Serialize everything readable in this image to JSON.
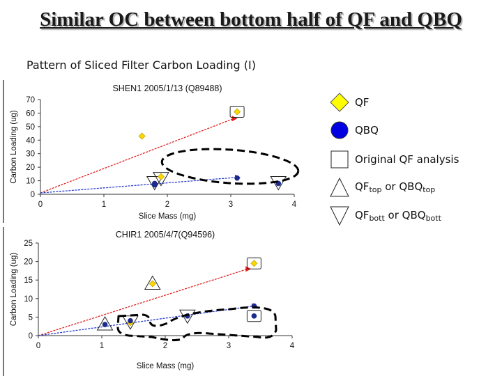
{
  "slide": {
    "title": "Similar OC between bottom half of QF and QBQ",
    "subtitle": "Pattern of Sliced Filter Carbon Loading (I)"
  },
  "legend": {
    "qf": "QF",
    "qbq": "QBQ",
    "original": "Original QF analysis",
    "top_a": "QF",
    "top_sub": "top",
    "top_b": " or QBQ",
    "top_sub2": "top",
    "bott_a": "QF",
    "bott_sub": "bott",
    "bott_b": " or QBQ",
    "bott_sub2": "bott"
  },
  "colors": {
    "qf_fill": "#ffd700",
    "qf_stroke": "#b0a000",
    "qbq_fill": "#1c2a8c",
    "qf_line": "#e02020",
    "qbq_line": "#2a3fd0"
  },
  "chart_data": [
    {
      "type": "scatter",
      "title": "SHEN1 2005/1/13 (Q89488)",
      "xlabel": "Slice Mass (mg)",
      "ylabel": "Carbon Loading (ug)",
      "xlim": [
        0,
        4
      ],
      "ylim": [
        0,
        70
      ],
      "xticks": [
        "0",
        "1",
        "2",
        "3",
        "4"
      ],
      "yticks": [
        "0",
        "10",
        "20",
        "30",
        "40",
        "50",
        "60",
        "70"
      ],
      "series": [
        {
          "name": "QF",
          "marker": "diamond",
          "points": [
            [
              1.6,
              43
            ],
            [
              1.9,
              13
            ],
            [
              3.1,
              61
            ]
          ]
        },
        {
          "name": "QBQ",
          "marker": "circle",
          "points": [
            [
              1.8,
              7
            ],
            [
              1.8,
              8
            ],
            [
              3.1,
              12
            ],
            [
              3.75,
              8
            ]
          ]
        }
      ],
      "trendlines": [
        {
          "name": "QF",
          "from": [
            0,
            1
          ],
          "to": [
            3.05,
            56
          ]
        },
        {
          "name": "QBQ",
          "from": [
            0,
            1
          ],
          "to": [
            3.1,
            12.5
          ]
        }
      ]
    },
    {
      "type": "scatter",
      "title": "CHIR1 2005/4/7(Q94596)",
      "xlabel": "Slice Mass (mg)",
      "ylabel": "Carbon Loading (ug)",
      "xlim": [
        0,
        4
      ],
      "ylim": [
        0,
        25
      ],
      "xticks": [
        "0",
        "1",
        "2",
        "3",
        "4"
      ],
      "yticks": [
        "0",
        "5",
        "10",
        "15",
        "20",
        "25"
      ],
      "series": [
        {
          "name": "QF",
          "marker": "diamond",
          "points": [
            [
              1.8,
              14
            ],
            [
              1.45,
              3.5
            ],
            [
              3.4,
              19.5
            ]
          ]
        },
        {
          "name": "QBQ",
          "marker": "circle",
          "points": [
            [
              1.05,
              3
            ],
            [
              1.45,
              4
            ],
            [
              2.35,
              5.3
            ],
            [
              3.4,
              8
            ],
            [
              3.4,
              5.3
            ]
          ]
        }
      ],
      "trendlines": [
        {
          "name": "QF",
          "from": [
            0,
            0
          ],
          "to": [
            3.3,
            18
          ]
        },
        {
          "name": "QBQ",
          "from": [
            0,
            0
          ],
          "to": [
            3.4,
            8
          ]
        }
      ]
    }
  ]
}
